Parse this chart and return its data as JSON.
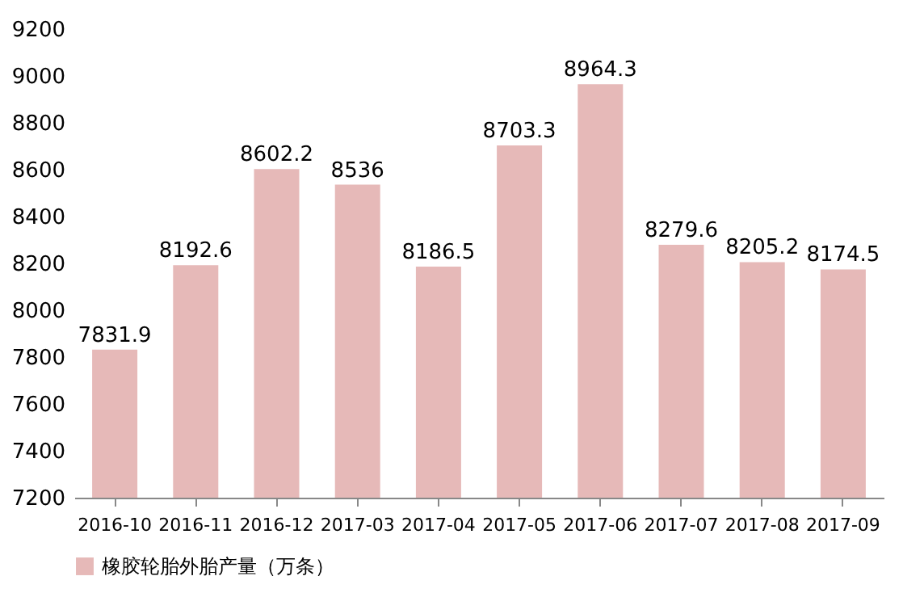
{
  "chart_data": {
    "type": "bar",
    "categories": [
      "2016-10",
      "2016-11",
      "2016-12",
      "2017-03",
      "2017-04",
      "2017-05",
      "2017-06",
      "2017-07",
      "2017-08",
      "2017-09"
    ],
    "series": [
      {
        "name": "橡胶轮胎外胎产量（万条）",
        "color": "#e6b9b8",
        "values": [
          7831.9,
          8192.6,
          8602.2,
          8536,
          8186.5,
          8703.3,
          8964.3,
          8279.6,
          8205.2,
          8174.5
        ]
      }
    ],
    "ylim": [
      7200,
      9200
    ],
    "yticks": [
      7200,
      7400,
      7600,
      7800,
      8000,
      8200,
      8400,
      8600,
      8800,
      9000,
      9200
    ],
    "data_labels": true,
    "legend": "bottom left",
    "grid": false
  }
}
